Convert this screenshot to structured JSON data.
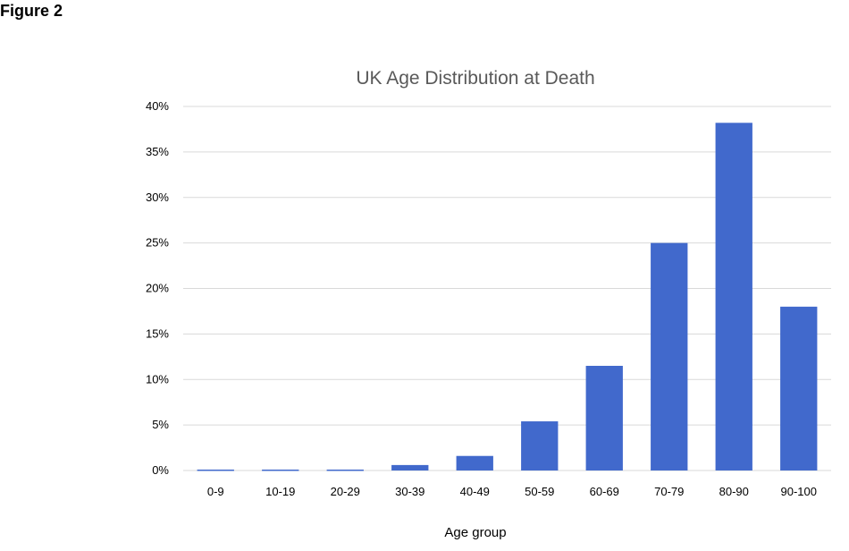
{
  "figure_label": "Figure 2",
  "colors": {
    "bar": "#4169cc",
    "grid": "#d9d9d9",
    "title": "#595959"
  },
  "chart_data": {
    "type": "bar",
    "title": "UK Age Distribution at Death",
    "xlabel": "Age group",
    "ylabel": "",
    "categories": [
      "0-9",
      "10-19",
      "20-29",
      "30-39",
      "40-49",
      "50-59",
      "60-69",
      "70-79",
      "80-90",
      "90-100"
    ],
    "values": [
      0.1,
      0.1,
      0.1,
      0.6,
      1.6,
      5.4,
      11.5,
      25.0,
      38.2,
      18.0
    ],
    "ylim": [
      0,
      40
    ],
    "yticks": [
      "0%",
      "5%",
      "10%",
      "15%",
      "20%",
      "25%",
      "30%",
      "35%",
      "40%"
    ],
    "grid": true,
    "legend": "none"
  }
}
